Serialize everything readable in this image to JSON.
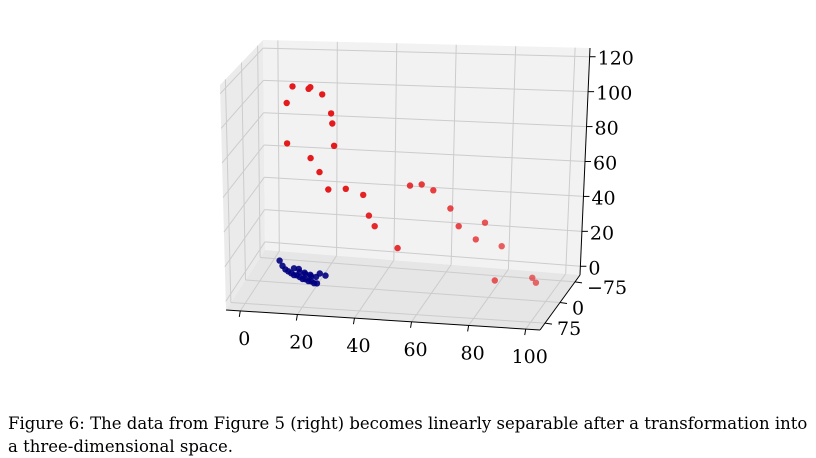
{
  "chart_data": {
    "type": "scatter",
    "dimensions": 3,
    "x_ticks": [
      "0",
      "20",
      "40",
      "60",
      "80",
      "100"
    ],
    "y_ticks": [
      "75",
      "0",
      "−75"
    ],
    "z_ticks": [
      "0",
      "20",
      "40",
      "60",
      "80",
      "100",
      "120"
    ],
    "xlim": [
      -5,
      105
    ],
    "ylim": [
      -100,
      100
    ],
    "zlim": [
      -5,
      125
    ],
    "grid": true,
    "series": [
      {
        "color": "#e41a1c",
        "points": [
          [
            12,
            0,
            112
          ],
          [
            18,
            0,
            112
          ],
          [
            10,
            0,
            102
          ],
          [
            16,
            -20,
            108
          ],
          [
            10,
            0,
            78
          ],
          [
            22,
            0,
            108
          ],
          [
            25,
            0,
            97
          ],
          [
            24,
            -20,
            88
          ],
          [
            18,
            0,
            70
          ],
          [
            21,
            0,
            62
          ],
          [
            26,
            0,
            78
          ],
          [
            24,
            0,
            52
          ],
          [
            30,
            0,
            53
          ],
          [
            36,
            0,
            50
          ],
          [
            38,
            0,
            38
          ],
          [
            52,
            0,
            57
          ],
          [
            56,
            0,
            58
          ],
          [
            60,
            0,
            55
          ],
          [
            40,
            0,
            32
          ],
          [
            48,
            0,
            20
          ],
          [
            66,
            0,
            45
          ],
          [
            69,
            0,
            35
          ],
          [
            75,
            0,
            28
          ],
          [
            84,
            0,
            25
          ],
          [
            78,
            0,
            38
          ],
          [
            95,
            0,
            8
          ],
          [
            82,
            0,
            5
          ],
          [
            95,
            -20,
            2
          ]
        ]
      },
      {
        "color": "#00007f",
        "points": [
          [
            7,
            0,
            8
          ],
          [
            8,
            0,
            5
          ],
          [
            9,
            0,
            3
          ],
          [
            10,
            0,
            2
          ],
          [
            11,
            0,
            1
          ],
          [
            12,
            0,
            0
          ],
          [
            13,
            0,
            0
          ],
          [
            14,
            0,
            -1
          ],
          [
            15,
            0,
            -2
          ],
          [
            16,
            0,
            -2
          ],
          [
            17,
            0,
            -3
          ],
          [
            18,
            0,
            -3
          ],
          [
            19,
            0,
            -4
          ],
          [
            20,
            0,
            -4
          ],
          [
            12,
            0,
            4
          ],
          [
            14,
            0,
            2
          ],
          [
            16,
            0,
            1
          ],
          [
            18,
            0,
            0
          ],
          [
            21,
            0,
            2
          ],
          [
            23,
            0,
            1
          ],
          [
            13,
            -10,
            2
          ],
          [
            15,
            -10,
            0
          ],
          [
            17,
            -10,
            -1
          ],
          [
            19,
            -10,
            -2
          ]
        ]
      }
    ]
  },
  "caption": "Figure 6: The data from Figure 5 (right) becomes linearly separable after a transformation into a three-dimensional space."
}
